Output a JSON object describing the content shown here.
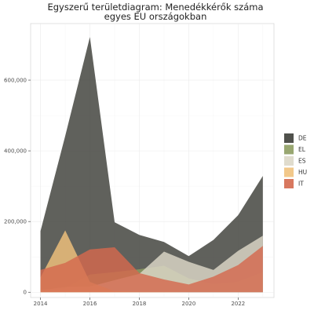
{
  "chart_data": {
    "type": "area",
    "title": [
      "Egyszerű területdiagram: Menedékkérők száma",
      "egyes EU országokban"
    ],
    "xlabel": "",
    "ylabel": "",
    "x": [
      2014,
      2015,
      2016,
      2017,
      2018,
      2019,
      2020,
      2021,
      2022,
      2023
    ],
    "x_ticks": [
      "2014",
      "2016",
      "2018",
      "2020",
      "2022"
    ],
    "y_ticks": [
      "0",
      "200,000",
      "400,000",
      "600,000"
    ],
    "xlim": [
      2013.6,
      2023.45
    ],
    "ylim": [
      -15000,
      760000
    ],
    "grid": true,
    "legend_position": "right",
    "series": [
      {
        "name": "DE",
        "color": "#3d3e38",
        "values": [
          173000,
          442000,
          722000,
          198000,
          162000,
          142000,
          102000,
          148000,
          218000,
          329000
        ]
      },
      {
        "name": "EL",
        "color": "#8e9d62",
        "values": [
          9000,
          11000,
          50000,
          57000,
          65000,
          75000,
          39000,
          23000,
          30000,
          57000
        ]
      },
      {
        "name": "ES",
        "color": "#ddd8c8",
        "values": [
          5000,
          15000,
          16000,
          34000,
          52000,
          115000,
          86000,
          63000,
          117000,
          160000
        ]
      },
      {
        "name": "HU",
        "color": "#f1c27d",
        "values": [
          42000,
          175000,
          29000,
          3000,
          1000,
          500,
          100,
          50,
          50,
          30
        ]
      },
      {
        "name": "IT",
        "color": "#d4694e",
        "values": [
          63000,
          83000,
          121000,
          127000,
          54000,
          36000,
          22000,
          44000,
          77000,
          131000
        ]
      }
    ]
  }
}
